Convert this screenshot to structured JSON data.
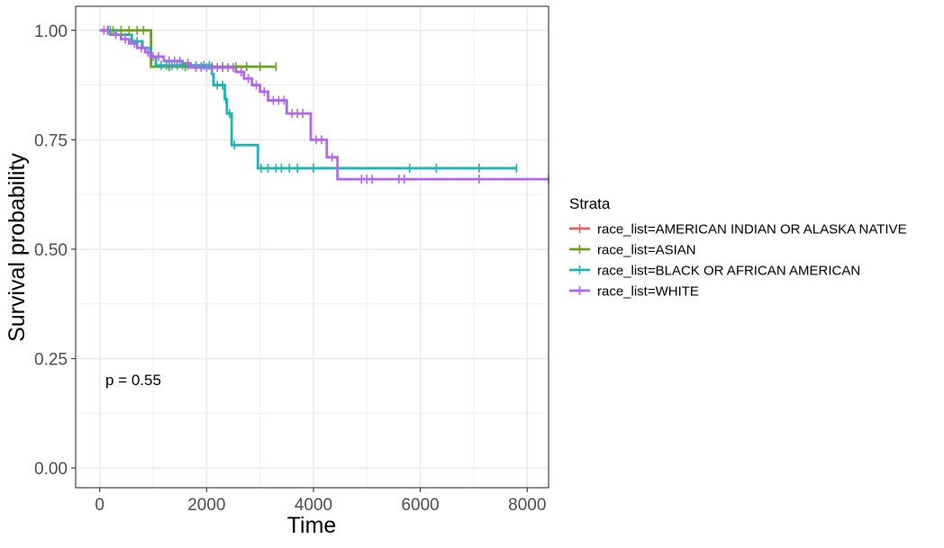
{
  "chart_data": {
    "type": "line",
    "subtype": "kaplan-meier",
    "title": "",
    "xlabel": "Time",
    "ylabel": "Survival probability",
    "xlim": [
      -450,
      8400
    ],
    "ylim": [
      -0.045,
      1.055
    ],
    "xticks": [
      0,
      2000,
      4000,
      6000,
      8000
    ],
    "xtick_labels": [
      "0",
      "2000",
      "4000",
      "6000",
      "8000"
    ],
    "yticks": [
      0,
      0.25,
      0.5,
      0.75,
      1
    ],
    "ytick_labels": [
      "0.00",
      "0.25",
      "0.50",
      "0.75",
      "1.00"
    ],
    "grid": true,
    "legend": {
      "title": "Strata",
      "placement": "right",
      "entries": [
        "race_list=AMERICAN INDIAN OR ALASKA NATIVE",
        "race_list=ASIAN",
        "race_list=BLACK OR AFRICAN AMERICAN",
        "race_list=WHITE"
      ]
    },
    "annotation": "p = 0.55",
    "colors": {
      "american_indian": "#E7625E",
      "asian": "#6BA01E",
      "black": "#1DB5B3",
      "white": "#B266EE",
      "grid": "#ebebeb",
      "panel_border": "#333333"
    },
    "series": [
      {
        "name": "race_list=AMERICAN INDIAN OR ALASKA NATIVE",
        "color": "#E7625E",
        "steps": [
          [
            0,
            1
          ],
          [
            150,
            1
          ]
        ],
        "censors": [
          [
            150,
            1
          ]
        ]
      },
      {
        "name": "race_list=ASIAN",
        "color": "#6BA01E",
        "steps": [
          [
            0,
            1
          ],
          [
            960,
            1
          ],
          [
            960,
            0.917
          ],
          [
            3300,
            0.917
          ]
        ],
        "censors": [
          [
            150,
            1
          ],
          [
            250,
            1
          ],
          [
            400,
            1
          ],
          [
            550,
            1
          ],
          [
            700,
            1
          ],
          [
            820,
            1
          ],
          [
            1300,
            0.917
          ],
          [
            1600,
            0.917
          ],
          [
            1900,
            0.917
          ],
          [
            2100,
            0.917
          ],
          [
            2300,
            0.917
          ],
          [
            2550,
            0.917
          ],
          [
            2750,
            0.917
          ],
          [
            3000,
            0.917
          ],
          [
            3300,
            0.917
          ]
        ]
      },
      {
        "name": "race_list=BLACK OR AFRICAN AMERICAN",
        "color": "#1DB5B3",
        "steps": [
          [
            0,
            1
          ],
          [
            300,
            1
          ],
          [
            300,
            0.99
          ],
          [
            600,
            0.99
          ],
          [
            600,
            0.975
          ],
          [
            800,
            0.975
          ],
          [
            800,
            0.96
          ],
          [
            950,
            0.96
          ],
          [
            950,
            0.94
          ],
          [
            1050,
            0.94
          ],
          [
            1050,
            0.92
          ],
          [
            2100,
            0.92
          ],
          [
            2100,
            0.9
          ],
          [
            2130,
            0.9
          ],
          [
            2130,
            0.875
          ],
          [
            2340,
            0.875
          ],
          [
            2340,
            0.843
          ],
          [
            2380,
            0.843
          ],
          [
            2380,
            0.81
          ],
          [
            2470,
            0.81
          ],
          [
            2470,
            0.738
          ],
          [
            2960,
            0.738
          ],
          [
            2960,
            0.685
          ],
          [
            7800,
            0.685
          ]
        ],
        "censors": [
          [
            200,
            1
          ],
          [
            700,
            0.975
          ],
          [
            1150,
            0.92
          ],
          [
            1250,
            0.92
          ],
          [
            1350,
            0.92
          ],
          [
            1450,
            0.92
          ],
          [
            1550,
            0.92
          ],
          [
            1650,
            0.92
          ],
          [
            1800,
            0.92
          ],
          [
            1950,
            0.92
          ],
          [
            2050,
            0.92
          ],
          [
            2200,
            0.875
          ],
          [
            2300,
            0.875
          ],
          [
            2360,
            0.843
          ],
          [
            2430,
            0.81
          ],
          [
            2520,
            0.738
          ],
          [
            3020,
            0.685
          ],
          [
            3150,
            0.685
          ],
          [
            3300,
            0.685
          ],
          [
            3400,
            0.685
          ],
          [
            3550,
            0.685
          ],
          [
            3700,
            0.685
          ],
          [
            4000,
            0.685
          ],
          [
            5800,
            0.685
          ],
          [
            6300,
            0.685
          ],
          [
            7100,
            0.685
          ],
          [
            7800,
            0.685
          ]
        ]
      },
      {
        "name": "race_list=WHITE",
        "color": "#B266EE",
        "steps": [
          [
            0,
            1
          ],
          [
            200,
            1
          ],
          [
            200,
            0.99
          ],
          [
            400,
            0.99
          ],
          [
            400,
            0.98
          ],
          [
            550,
            0.98
          ],
          [
            550,
            0.97
          ],
          [
            700,
            0.97
          ],
          [
            700,
            0.96
          ],
          [
            850,
            0.96
          ],
          [
            850,
            0.95
          ],
          [
            950,
            0.95
          ],
          [
            950,
            0.94
          ],
          [
            1200,
            0.94
          ],
          [
            1200,
            0.93
          ],
          [
            1550,
            0.93
          ],
          [
            1550,
            0.925
          ],
          [
            1700,
            0.925
          ],
          [
            1700,
            0.915
          ],
          [
            2550,
            0.915
          ],
          [
            2550,
            0.905
          ],
          [
            2700,
            0.905
          ],
          [
            2700,
            0.89
          ],
          [
            2850,
            0.89
          ],
          [
            2850,
            0.875
          ],
          [
            3000,
            0.875
          ],
          [
            3000,
            0.86
          ],
          [
            3150,
            0.86
          ],
          [
            3150,
            0.84
          ],
          [
            3500,
            0.84
          ],
          [
            3500,
            0.81
          ],
          [
            3950,
            0.81
          ],
          [
            3950,
            0.75
          ],
          [
            4250,
            0.75
          ],
          [
            4250,
            0.71
          ],
          [
            4450,
            0.71
          ],
          [
            4450,
            0.66
          ],
          [
            8400,
            0.66
          ]
        ],
        "censors": [
          [
            80,
            1
          ],
          [
            160,
            1
          ],
          [
            300,
            0.99
          ],
          [
            480,
            0.98
          ],
          [
            650,
            0.97
          ],
          [
            780,
            0.96
          ],
          [
            900,
            0.95
          ],
          [
            1000,
            0.94
          ],
          [
            1100,
            0.94
          ],
          [
            1300,
            0.93
          ],
          [
            1400,
            0.93
          ],
          [
            1500,
            0.93
          ],
          [
            1650,
            0.925
          ],
          [
            1800,
            0.915
          ],
          [
            1900,
            0.915
          ],
          [
            2000,
            0.915
          ],
          [
            2100,
            0.915
          ],
          [
            2200,
            0.915
          ],
          [
            2300,
            0.915
          ],
          [
            2400,
            0.915
          ],
          [
            2500,
            0.915
          ],
          [
            2650,
            0.905
          ],
          [
            2780,
            0.89
          ],
          [
            2930,
            0.875
          ],
          [
            3080,
            0.86
          ],
          [
            3250,
            0.84
          ],
          [
            3350,
            0.84
          ],
          [
            3450,
            0.84
          ],
          [
            3600,
            0.81
          ],
          [
            3700,
            0.81
          ],
          [
            3800,
            0.81
          ],
          [
            4050,
            0.75
          ],
          [
            4150,
            0.75
          ],
          [
            4350,
            0.71
          ],
          [
            4900,
            0.66
          ],
          [
            5000,
            0.66
          ],
          [
            5100,
            0.66
          ],
          [
            5600,
            0.66
          ],
          [
            5700,
            0.66
          ],
          [
            7100,
            0.66
          ],
          [
            8400,
            0.66
          ]
        ]
      }
    ]
  }
}
